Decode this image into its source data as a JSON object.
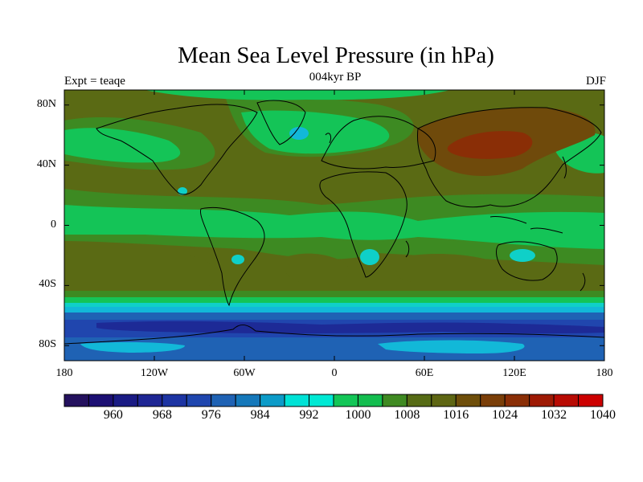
{
  "title": "Mean Sea Level Pressure (in hPa)",
  "subtitle": {
    "left": "Expt = teaqe",
    "center": "004kyr BP",
    "right": "DJF"
  },
  "map": {
    "projection": "cylindrical equidistant",
    "lon_range": [
      -180,
      180
    ],
    "lat_range": [
      -90,
      90
    ],
    "lat_ticks": [
      {
        "value": 80,
        "label": "80N"
      },
      {
        "value": 40,
        "label": "40N"
      },
      {
        "value": 0,
        "label": "0"
      },
      {
        "value": -40,
        "label": "40S"
      },
      {
        "value": -80,
        "label": "80S"
      }
    ],
    "lon_ticks": [
      {
        "value": -180,
        "label": "180"
      },
      {
        "value": -120,
        "label": "120W"
      },
      {
        "value": -60,
        "label": "60W"
      },
      {
        "value": 0,
        "label": "0"
      },
      {
        "value": 60,
        "label": "60E"
      },
      {
        "value": 120,
        "label": "120E"
      },
      {
        "value": 180,
        "label": "180"
      }
    ]
  },
  "colorbar": {
    "colors": [
      "#24115e",
      "#1c0f73",
      "#1a1b84",
      "#1e2694",
      "#1d34a3",
      "#1f46ae",
      "#1f62b4",
      "#1578ba",
      "#0c9bc8",
      "#00e2d6",
      "#00e9d4",
      "#13c657",
      "#13bd4f",
      "#3f8a22",
      "#566b15",
      "#5e6613",
      "#6e4e0a",
      "#7a3e08",
      "#8a2e06",
      "#9e1a04",
      "#b80b03",
      "#cc0000"
    ],
    "ticks": [
      {
        "index": 2,
        "label": "960"
      },
      {
        "index": 4,
        "label": "968"
      },
      {
        "index": 6,
        "label": "976"
      },
      {
        "index": 8,
        "label": "984"
      },
      {
        "index": 10,
        "label": "992"
      },
      {
        "index": 12,
        "label": "1000"
      },
      {
        "index": 14,
        "label": "1008"
      },
      {
        "index": 16,
        "label": "1016"
      },
      {
        "index": 18,
        "label": "1024"
      },
      {
        "index": 20,
        "label": "1032"
      },
      {
        "index": 22,
        "label": "1040"
      }
    ]
  },
  "colors": {
    "high_1016": "#5a6a14",
    "mid_1012": "#3d8a22",
    "low_1008": "#14c457",
    "low_1000": "#0fd0c8",
    "low_992": "#12b8d8",
    "low_984": "#1f62b4",
    "low_976": "#2046ae",
    "low_968": "#1d2a96",
    "high_1024": "#6f4a0b",
    "high_1032": "#8a2e06"
  }
}
